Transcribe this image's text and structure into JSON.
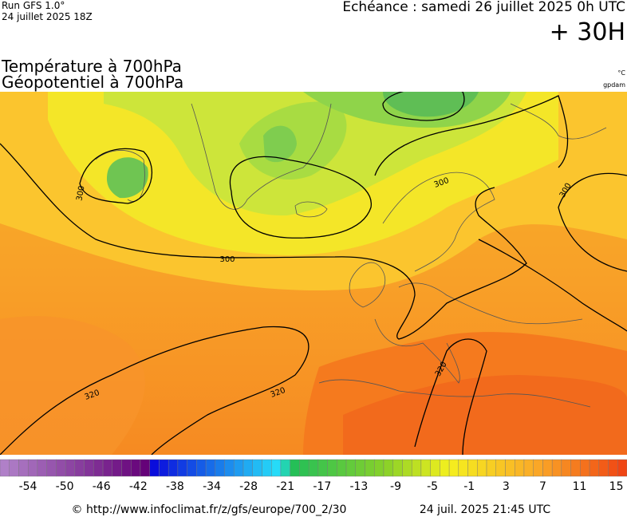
{
  "header": {
    "run": "Run GFS 1.0°",
    "run_time": "24 juillet 2025 18Z",
    "echeance": "Echéance : samedi 26 juillet 2025 0h UTC",
    "lead": "+ 30H"
  },
  "title": {
    "line1": "Température à 700hPa",
    "line2": "Géopotentiel à 700hPa",
    "unit_temp": "°C",
    "unit_geo": "gpdam"
  },
  "contour_labels": [
    "300",
    "300",
    "300",
    "300",
    "320",
    "320",
    "320"
  ],
  "colorbar": {
    "labels": [
      "-54",
      "-50",
      "-46",
      "-42",
      "-38",
      "-34",
      "-28",
      "-21",
      "-17",
      "-13",
      "-9",
      "-5",
      "-1",
      "3",
      "7",
      "11",
      "15"
    ]
  },
  "footer": {
    "url": "© http://www.infoclimat.fr/z/gfs/europe/700_2/30",
    "timestamp": "24 juil. 2025 21:45 UTC"
  }
}
